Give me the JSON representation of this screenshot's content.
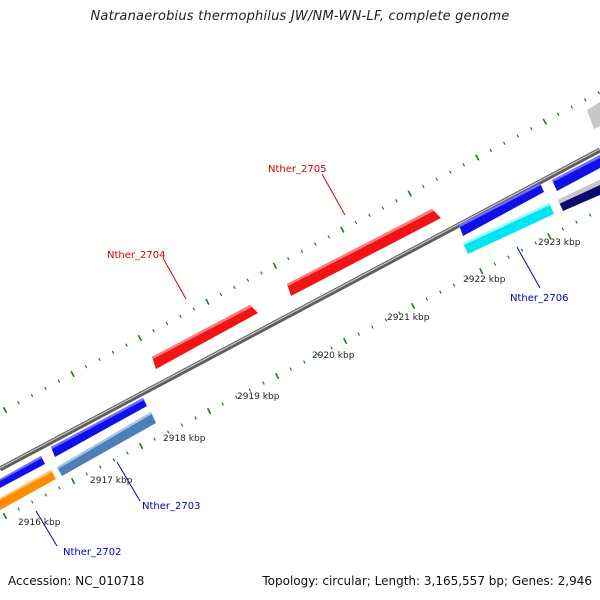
{
  "title": "Natranaerobius thermophilus JW/NM-WN-LF, complete genome",
  "footer": {
    "accession": "Accession: NC_010718",
    "summary": "Topology: circular; Length: 3,165,557 bp; Genes: 2,946"
  },
  "colors": {
    "backbone": "#8c8c8c",
    "ticks": "#1e7a1e",
    "forward_label": "#d40000",
    "reverse_label": "#0000c0"
  },
  "scale_labels": [
    {
      "text": "2916 kbp",
      "kbp": 2916
    },
    {
      "text": "2917 kbp",
      "kbp": 2917
    },
    {
      "text": "2918 kbp",
      "kbp": 2918
    },
    {
      "text": "2919 kbp",
      "kbp": 2919
    },
    {
      "text": "2920 kbp",
      "kbp": 2920
    },
    {
      "text": "2921 kbp",
      "kbp": 2921
    },
    {
      "text": "2922 kbp",
      "kbp": 2922
    },
    {
      "text": "2923 kbp",
      "kbp": 2923
    }
  ],
  "features": [
    {
      "name": "forward-gene-red-1",
      "strand": "+",
      "color": "#f01414"
    },
    {
      "name": "forward-gene-red-2",
      "strand": "+",
      "color": "#f01414"
    },
    {
      "name": "reverse-gene-blue-1",
      "strand": "-",
      "color": "#1010e8"
    },
    {
      "name": "reverse-gene-blue-2",
      "strand": "-",
      "color": "#1010e8"
    },
    {
      "name": "reverse-gene-blue-3",
      "strand": "-",
      "color": "#1010e8"
    },
    {
      "name": "reverse-gene-blue-4",
      "strand": "-",
      "color": "#1010e8"
    },
    {
      "name": "reverse-gene-orange",
      "strand": "-",
      "color": "#ff8c00"
    },
    {
      "name": "reverse-gene-steelblue",
      "strand": "-",
      "color": "#4a7fb8"
    },
    {
      "name": "reverse-gene-cyan",
      "strand": "-",
      "color": "#00e5f0"
    },
    {
      "name": "reverse-gene-navy",
      "strand": "-",
      "color": "#0a0a70"
    },
    {
      "name": "reverse-gene-grey",
      "strand": "-",
      "color": "#c8c8c8"
    }
  ],
  "gene_labels": [
    {
      "text": "Nther_2704",
      "strand": "+"
    },
    {
      "text": "Nther_2705",
      "strand": "+"
    },
    {
      "text": "Nther_2702",
      "strand": "-"
    },
    {
      "text": "Nther_2703",
      "strand": "-"
    },
    {
      "text": "Nther_2706",
      "strand": "-"
    }
  ]
}
